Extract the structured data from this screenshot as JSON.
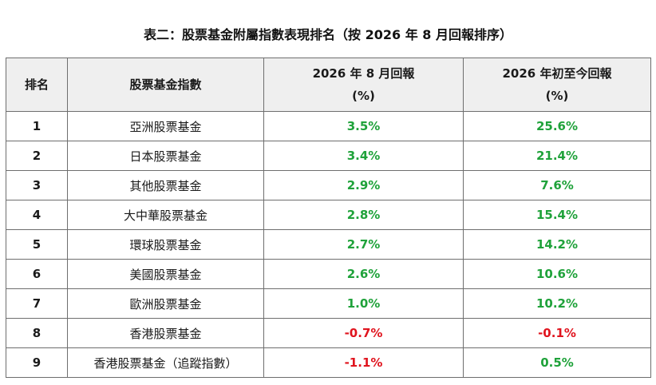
{
  "title": "表二：股票基金附屬指數表現排名（按 2026 年 8 月回報排序）",
  "header": {
    "rank": "排名",
    "name": "股票基金指數",
    "month_line1": "2026 年 8 月回報",
    "month_line2": "(%)",
    "ytd_line1": "2026 年初至今回報",
    "ytd_line2": "(%)"
  },
  "colors": {
    "positive": "#1fa23a",
    "negative": "#e0141e"
  },
  "rows": [
    {
      "rank": "1",
      "name": "亞洲股票基金",
      "month": "3.5%",
      "ytd": "25.6%",
      "month_sign": "pos",
      "ytd_sign": "pos"
    },
    {
      "rank": "2",
      "name": "日本股票基金",
      "month": "3.4%",
      "ytd": "21.4%",
      "month_sign": "pos",
      "ytd_sign": "pos"
    },
    {
      "rank": "3",
      "name": "其他股票基金",
      "month": "2.9%",
      "ytd": "7.6%",
      "month_sign": "pos",
      "ytd_sign": "pos"
    },
    {
      "rank": "4",
      "name": "大中華股票基金",
      "month": "2.8%",
      "ytd": "15.4%",
      "month_sign": "pos",
      "ytd_sign": "pos"
    },
    {
      "rank": "5",
      "name": "環球股票基金",
      "month": "2.7%",
      "ytd": "14.2%",
      "month_sign": "pos",
      "ytd_sign": "pos"
    },
    {
      "rank": "6",
      "name": "美國股票基金",
      "month": "2.6%",
      "ytd": "10.6%",
      "month_sign": "pos",
      "ytd_sign": "pos"
    },
    {
      "rank": "7",
      "name": "歐洲股票基金",
      "month": "1.0%",
      "ytd": "10.2%",
      "month_sign": "pos",
      "ytd_sign": "pos"
    },
    {
      "rank": "8",
      "name": "香港股票基金",
      "month": "-0.7%",
      "ytd": "-0.1%",
      "month_sign": "neg",
      "ytd_sign": "neg"
    },
    {
      "rank": "9",
      "name": "香港股票基金（追蹤指數）",
      "month": "-1.1%",
      "ytd": "0.5%",
      "month_sign": "neg",
      "ytd_sign": "pos"
    }
  ]
}
